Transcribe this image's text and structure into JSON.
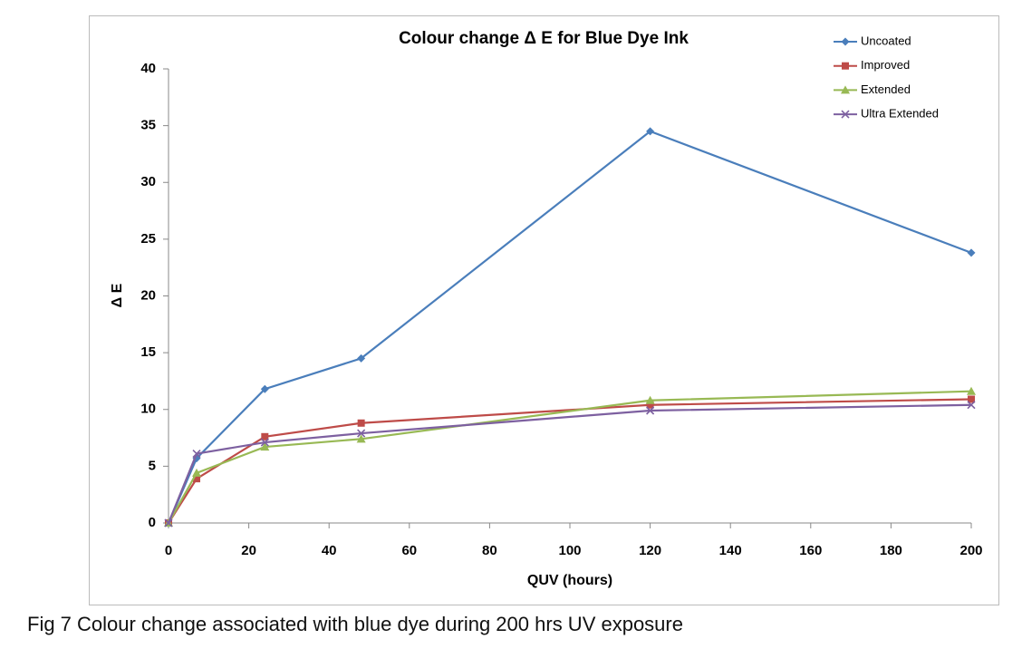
{
  "chart_data": {
    "type": "line",
    "title": "Colour change Δ E for Blue Dye Ink",
    "xlabel": "QUV (hours)",
    "ylabel": "Δ E",
    "caption": "Fig 7  Colour change associated with blue dye during 200 hrs UV exposure",
    "x": [
      0,
      7,
      24,
      48,
      120,
      200
    ],
    "series": [
      {
        "name": "Uncoated",
        "color": "#4a7ebb",
        "marker": "diamond",
        "values": [
          0,
          5.7,
          11.8,
          14.5,
          34.5,
          23.8
        ]
      },
      {
        "name": "Improved",
        "color": "#be4b48",
        "marker": "square",
        "values": [
          0,
          3.9,
          7.6,
          8.8,
          10.4,
          10.9
        ]
      },
      {
        "name": "Extended",
        "color": "#98b954",
        "marker": "triangle",
        "values": [
          0,
          4.4,
          6.7,
          7.4,
          10.8,
          11.6
        ]
      },
      {
        "name": "Ultra Extended",
        "color": "#7d60a0",
        "marker": "cross",
        "values": [
          0,
          6.1,
          7.1,
          7.9,
          9.9,
          10.4
        ]
      }
    ],
    "xlim": [
      0,
      200
    ],
    "xticks": [
      0,
      20,
      40,
      60,
      80,
      100,
      120,
      140,
      160,
      180,
      200
    ],
    "ylim": [
      0,
      40
    ],
    "yticks": [
      0,
      5,
      10,
      15,
      20,
      25,
      30,
      35,
      40
    ],
    "grid": false,
    "legend": "top-right"
  }
}
